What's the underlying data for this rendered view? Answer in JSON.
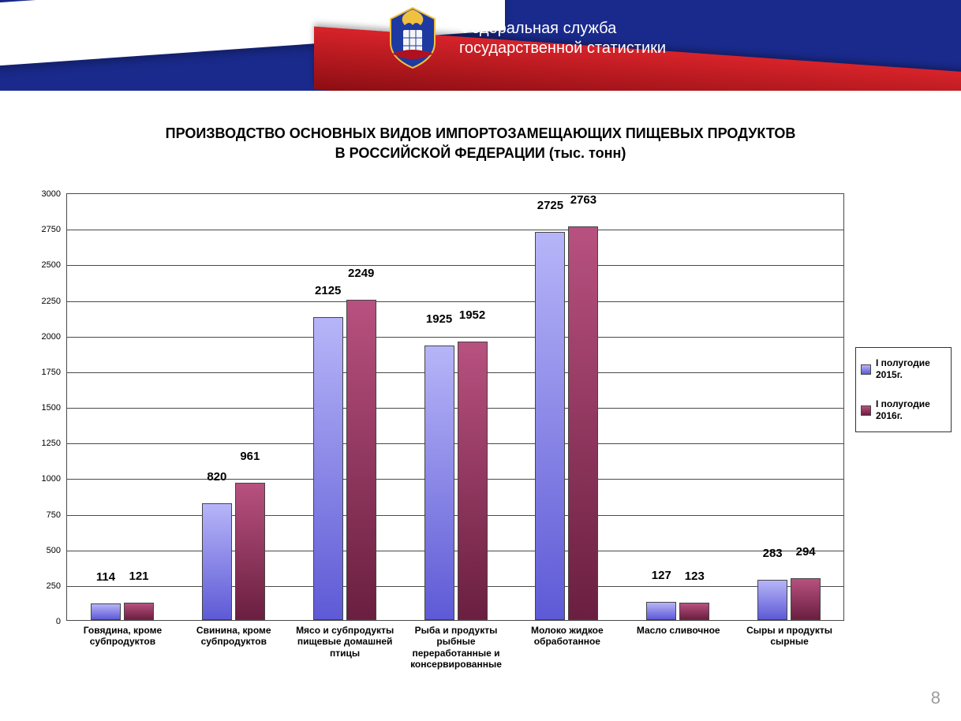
{
  "banner": {
    "org_line1": "Федеральная служба",
    "org_line2": "государственной статистики"
  },
  "title_line1": "ПРОИЗВОДСТВО ОСНОВНЫХ ВИДОВ ИМПОРТОЗАМЕЩАЮЩИХ ПИЩЕВЫХ ПРОДУКТОВ",
  "title_line2": "В РОССИЙСКОЙ ФЕДЕРАЦИИ (тыс. тонн)",
  "page_number": "8",
  "legend": {
    "series1": "I полугодие 2015г.",
    "series2": "I полугодие 2016г."
  },
  "chart": {
    "type": "bar",
    "ylim_max": 3000,
    "ylim_min": 0,
    "ytick_step": 250,
    "grid_color": "#4a4a4a",
    "background_color": "#ffffff",
    "plot_border_color": "#4a4a4a",
    "label_fontsize": 15,
    "axis_fontsize": 11,
    "category_fontsize": 12,
    "series_colors": {
      "s1": "#8d8af0",
      "s2": "#9a3260"
    },
    "bar_gradient": {
      "s1_light": "#b7b5f8",
      "s1_dark": "#5e5ad6",
      "s2_light": "#b8517f",
      "s2_dark": "#6a1f40"
    },
    "categories": [
      {
        "label": "Говядина, кроме субпродуктов",
        "v1": 114,
        "v2": 121
      },
      {
        "label": "Свинина, кроме субпродуктов",
        "v1": 820,
        "v2": 961
      },
      {
        "label": "Мясо и субпродукты пищевые домашней птицы",
        "v1": 2125,
        "v2": 2249
      },
      {
        "label": "Рыба и продукты рыбные переработанные и консервированные",
        "v1": 1925,
        "v2": 1952
      },
      {
        "label": "Молоко жидкое обработанное",
        "v1": 2725,
        "v2": 2763
      },
      {
        "label": "Масло сливочное",
        "v1": 127,
        "v2": 123
      },
      {
        "label": "Сыры и продукты сырные",
        "v1": 283,
        "v2": 294
      }
    ]
  }
}
